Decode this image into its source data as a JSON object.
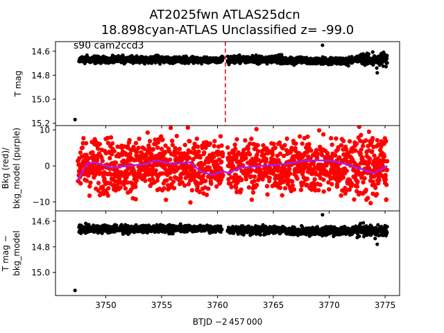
{
  "figure": {
    "title_line1": "AT2025fwn  ATLAS25dcn",
    "title_line2": "18.898cyan-ATLAS Unclassified z= -99.0",
    "xlabel": "BTJD −2 457 000"
  },
  "colors": {
    "lightcurve": "#000000",
    "background": "#ff0000",
    "bkg_model": "#a020f0",
    "event_marker": "#ff0000"
  },
  "chart_data": [
    {
      "type": "scatter",
      "panel": "top",
      "annotation": "s90 cam2ccd3",
      "ylabel": "T mag",
      "y_inverted": true,
      "xlim": [
        3745.5,
        3776.3
      ],
      "ylim": [
        15.22,
        14.52
      ],
      "yticks": [
        14.6,
        14.8,
        15.0,
        15.2
      ],
      "ytick_labels": [
        "14.6",
        "14.8",
        "15.0",
        "15.2"
      ],
      "vertical_line": {
        "x": 3760.7,
        "style": "dashed",
        "color": "red"
      },
      "series": [
        {
          "segments": [
            {
              "x_start": 3747.6,
              "x_end": 3760.5,
              "y_center": 14.67,
              "y_spread": 0.035
            },
            {
              "x_start": 3760.9,
              "x_end": 3775.2,
              "y_center": 14.67,
              "y_spread": 0.04
            }
          ],
          "outliers": [
            [
              3747.25,
              15.17
            ],
            [
              3769.4,
              14.55
            ],
            [
              3774.3,
              14.78
            ]
          ]
        }
      ]
    },
    {
      "type": "scatter",
      "panel": "middle",
      "ylabel": "Bkg (red)/\nbkg_model (purple)",
      "xlim": [
        3745.5,
        3776.3
      ],
      "ylim": [
        -12.5,
        11.2
      ],
      "yticks": [
        10,
        0,
        -10
      ],
      "ytick_labels": [
        "10",
        "0",
        "−10"
      ],
      "series": [
        {
          "name": "Bkg",
          "color": "red",
          "y_spread": 5,
          "x_range": [
            3747.5,
            3775.2
          ]
        },
        {
          "name": "bkg_model",
          "color": "purple",
          "x": [
            3747.5,
            3748.3,
            3749,
            3750.5,
            3752,
            3753.5,
            3754.5,
            3756,
            3757.5,
            3758.5,
            3759.5,
            3760.5,
            3761,
            3762,
            3764,
            3766,
            3768,
            3770,
            3771.5,
            3773,
            3774,
            3775.2
          ],
          "values": [
            -4,
            0.5,
            1.0,
            -0.5,
            0,
            0.5,
            1.5,
            0.5,
            1.0,
            -1.5,
            -2.5,
            -1.5,
            -2,
            -0.5,
            0,
            0.5,
            1.5,
            1.5,
            0.5,
            -1,
            -2,
            0
          ]
        }
      ]
    },
    {
      "type": "scatter",
      "panel": "bottom",
      "ylabel": "T mag −\nbkg_model",
      "y_inverted": true,
      "xlim": [
        3745.5,
        3776.3
      ],
      "ylim": [
        15.18,
        14.52
      ],
      "yticks": [
        14.6,
        14.8,
        15.0
      ],
      "ytick_labels": [
        "14.6",
        "14.8",
        "15.0"
      ],
      "xticks": [
        3750,
        3755,
        3760,
        3765,
        3770,
        3775
      ],
      "xtick_labels": [
        "3750",
        "3755",
        "3760",
        "3765",
        "3770",
        "3775"
      ],
      "series": [
        {
          "segments": [
            {
              "x_start": 3747.6,
              "x_end": 3760.4,
              "y_center": 14.66,
              "y_spread": 0.035
            },
            {
              "x_start": 3760.9,
              "x_end": 3775.2,
              "y_center": 14.67,
              "y_spread": 0.04
            }
          ],
          "outliers": [
            [
              3747.25,
              15.14
            ],
            [
              3769.4,
              14.55
            ],
            [
              3774.3,
              14.78
            ]
          ]
        }
      ]
    }
  ]
}
